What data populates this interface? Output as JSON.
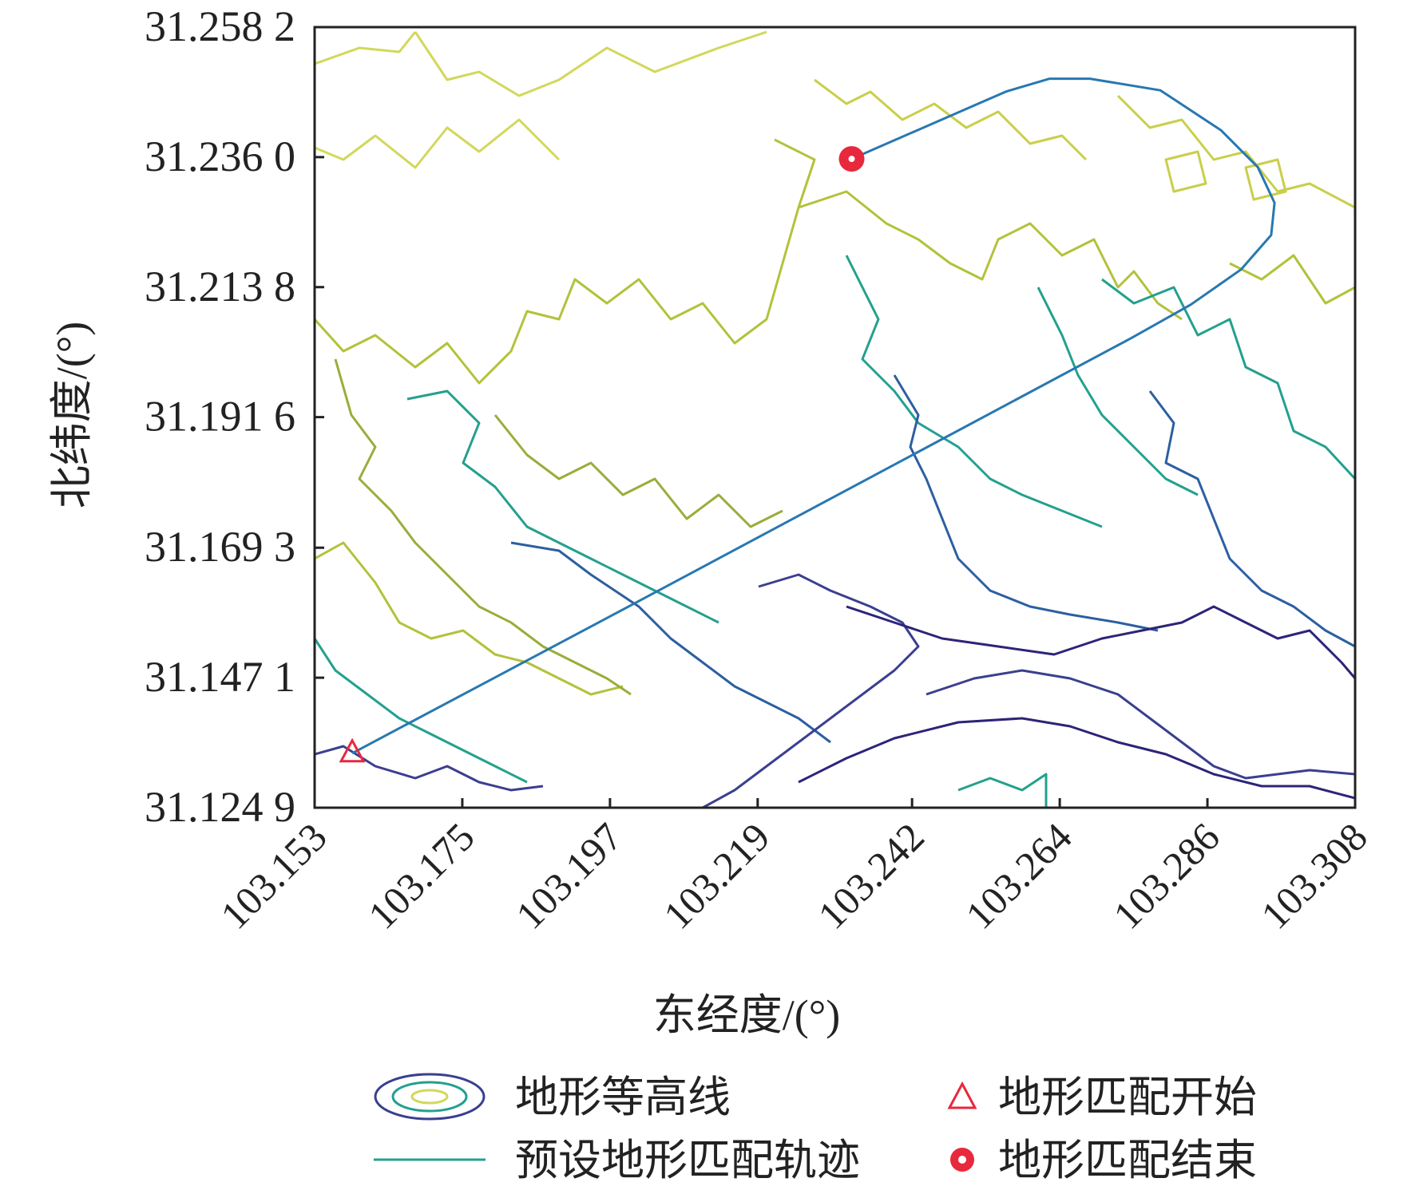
{
  "chart_data": {
    "type": "line",
    "title": "",
    "xlabel": "东经度/(°)",
    "ylabel": "北纬度/(°)",
    "xlim": [
      103.153,
      103.308
    ],
    "ylim": [
      31.1249,
      31.2582
    ],
    "x_ticks": [
      103.153,
      103.175,
      103.197,
      103.219,
      103.242,
      103.264,
      103.286,
      103.308
    ],
    "x_tick_labels": [
      "103.153",
      "103.175",
      "103.197",
      "103.219",
      "103.242",
      "103.264",
      "103.286",
      "103.308"
    ],
    "y_ticks": [
      31.2582,
      31.236,
      31.2138,
      31.1916,
      31.1693,
      31.1471,
      31.1249
    ],
    "y_tick_labels": [
      "31.258 2",
      "31.236 0",
      "31.213 8",
      "31.191 6",
      "31.169 3",
      "31.147 1",
      "31.124 9"
    ],
    "grid": false,
    "legend_position": "bottom",
    "legend": [
      {
        "key": "contour",
        "label": "地形等高线"
      },
      {
        "key": "start",
        "label": "地形匹配开始"
      },
      {
        "key": "track",
        "label": "预设地形匹配轨迹"
      },
      {
        "key": "end",
        "label": "地形匹配结束"
      }
    ],
    "series": [
      {
        "key": "track",
        "name": "预设地形匹配轨迹",
        "color": "#2878b0",
        "x": [
          103.1586,
          103.2005,
          103.242,
          103.2745,
          103.2835,
          103.291,
          103.2955,
          103.296,
          103.2935,
          103.288,
          103.279,
          103.2685,
          103.2625,
          103.256,
          103.233
        ],
        "y": [
          31.1342,
          31.1597,
          31.1851,
          31.205,
          31.2108,
          31.2168,
          31.2227,
          31.2282,
          31.2343,
          31.2406,
          31.2474,
          31.2494,
          31.2494,
          31.2472,
          31.2357
        ]
      },
      {
        "key": "start",
        "name": "地形匹配开始",
        "marker": "triangle",
        "color": "#e8283c",
        "x": [
          103.1586
        ],
        "y": [
          31.1342
        ]
      },
      {
        "key": "end",
        "name": "地形匹配结束",
        "marker": "circle",
        "color": "#e8283c",
        "x": [
          103.233
        ],
        "y": [
          31.2357
        ]
      }
    ],
    "contour_colors": [
      "#2c2478",
      "#3b3f8f",
      "#2c5fa0",
      "#23a08f",
      "#7cc16a",
      "#b3c23a",
      "#d2d85a"
    ]
  }
}
